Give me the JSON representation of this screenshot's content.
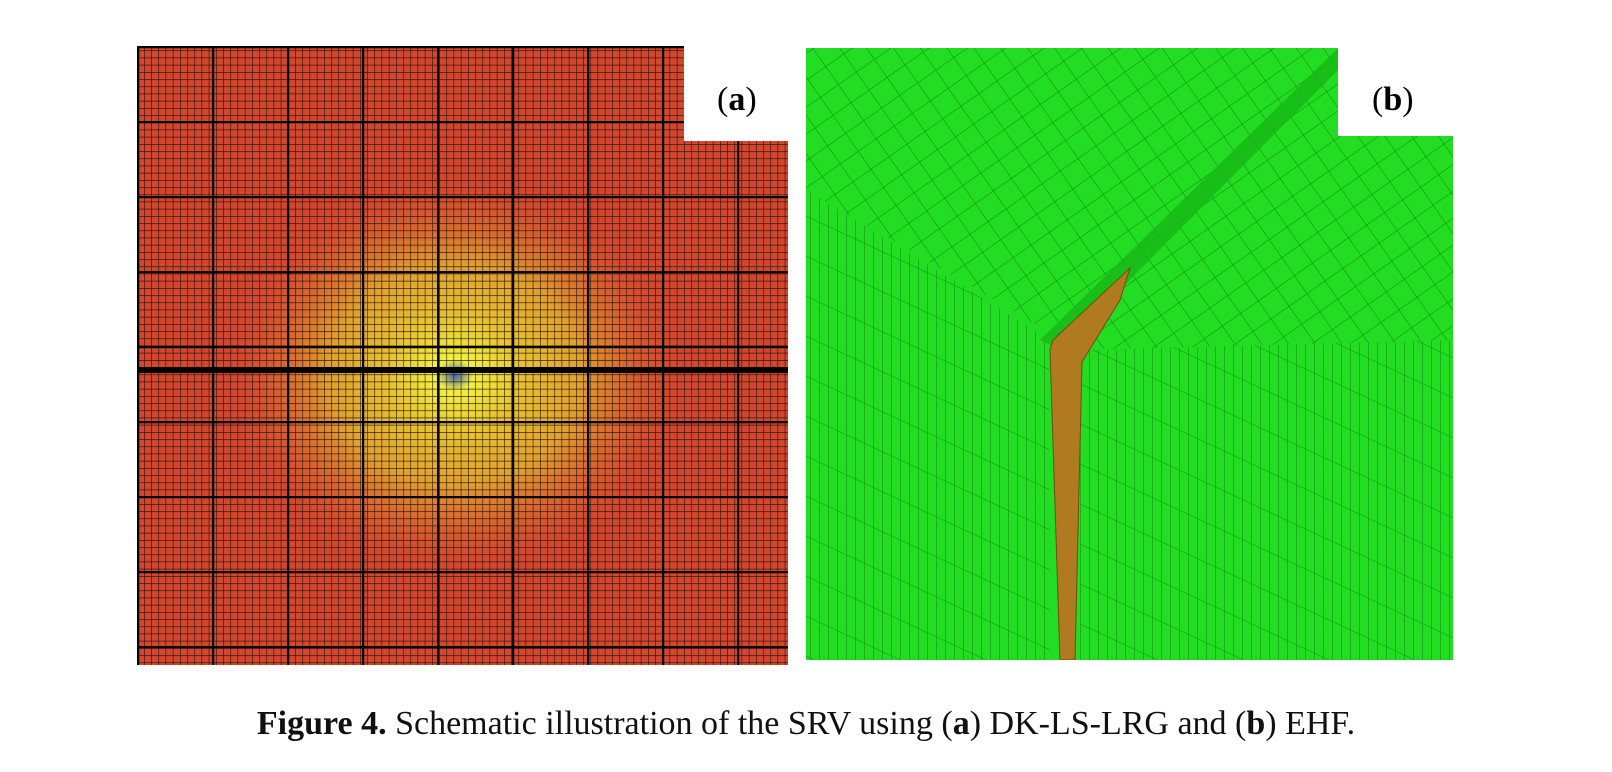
{
  "figure": {
    "panels": [
      {
        "label": [
          "(",
          "a",
          ")"
        ]
      },
      {
        "label": [
          "(",
          "b",
          ")"
        ]
      }
    ],
    "caption": {
      "label": "Figure 4.",
      "text": [
        "Schematic illustration of the SRV using (",
        "a",
        ") DK-LS-LRG and (",
        "b",
        ") EHF."
      ]
    }
  }
}
